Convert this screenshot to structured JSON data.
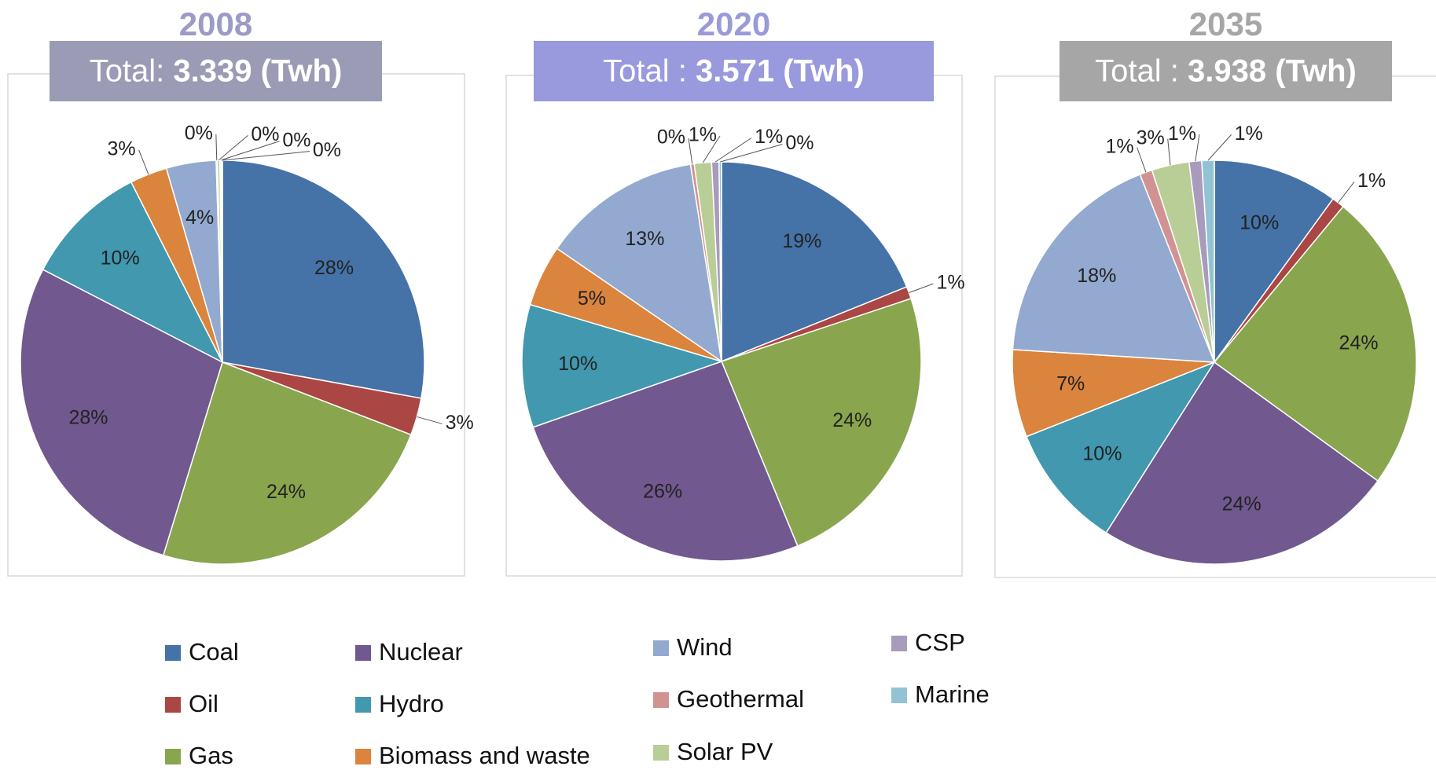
{
  "chart_data": [
    {
      "type": "pie",
      "year": "2008",
      "total_label": "Total:",
      "total_value": "3.339 (Twh)",
      "header_color": "#9b9bb5",
      "year_color": "#9b9bc4",
      "categories": [
        "Coal",
        "Oil",
        "Gas",
        "Nuclear",
        "Hydro",
        "Biomass and waste",
        "Wind",
        "Geothermal",
        "Solar PV",
        "CSP",
        "Marine"
      ],
      "colors": [
        "#4572a7",
        "#aa4643",
        "#89a54e",
        "#71588f",
        "#4198af",
        "#db843d",
        "#93a9cf",
        "#d19392",
        "#b9cd96",
        "#a99bbd",
        "#92c3d4"
      ],
      "values": [
        28,
        3,
        24,
        28,
        10,
        3,
        4,
        0.1,
        0.2,
        0.1,
        0.1
      ],
      "value_labels": [
        "28%",
        "3%",
        "24%",
        "28%",
        "10%",
        "3%",
        "4%",
        "0%",
        "0%",
        "0%",
        "0%"
      ]
    },
    {
      "type": "pie",
      "year": "2020",
      "total_label": "Total :",
      "total_value": "3.571 (Twh)",
      "header_color": "#9999dd",
      "year_color": "#9a9ad8",
      "categories": [
        "Coal",
        "Oil",
        "Gas",
        "Nuclear",
        "Hydro",
        "Biomass and waste",
        "Wind",
        "Geothermal",
        "Solar PV",
        "CSP",
        "Marine"
      ],
      "colors": [
        "#4572a7",
        "#aa4643",
        "#89a54e",
        "#71588f",
        "#4198af",
        "#db843d",
        "#93a9cf",
        "#d19392",
        "#b9cd96",
        "#a99bbd",
        "#92c3d4"
      ],
      "values": [
        19,
        1,
        24,
        26,
        10,
        5,
        13,
        0.3,
        1.4,
        0.6,
        0.2
      ],
      "value_labels": [
        "19%",
        "1%",
        "24%",
        "26%",
        "10%",
        "5%",
        "13%",
        "0%",
        "1%",
        "1%",
        "0%"
      ]
    },
    {
      "type": "pie",
      "year": "2035",
      "total_label": "Total :",
      "total_value": "3.938 (Twh)",
      "header_color": "#a6a6a6",
      "year_color": "#a6a6a6",
      "categories": [
        "Coal",
        "Oil",
        "Gas",
        "Nuclear",
        "Hydro",
        "Biomass and waste",
        "Wind",
        "Geothermal",
        "Solar PV",
        "CSP",
        "Marine"
      ],
      "colors": [
        "#4572a7",
        "#aa4643",
        "#89a54e",
        "#71588f",
        "#4198af",
        "#db843d",
        "#93a9cf",
        "#d19392",
        "#b9cd96",
        "#a99bbd",
        "#92c3d4"
      ],
      "values": [
        10,
        1,
        24,
        24,
        10,
        7,
        18,
        1,
        3,
        1,
        1
      ],
      "value_labels": [
        "10%",
        "1%",
        "24%",
        "24%",
        "10%",
        "7%",
        "18%",
        "1%",
        "3%",
        "1%",
        "1%"
      ]
    }
  ]
}
